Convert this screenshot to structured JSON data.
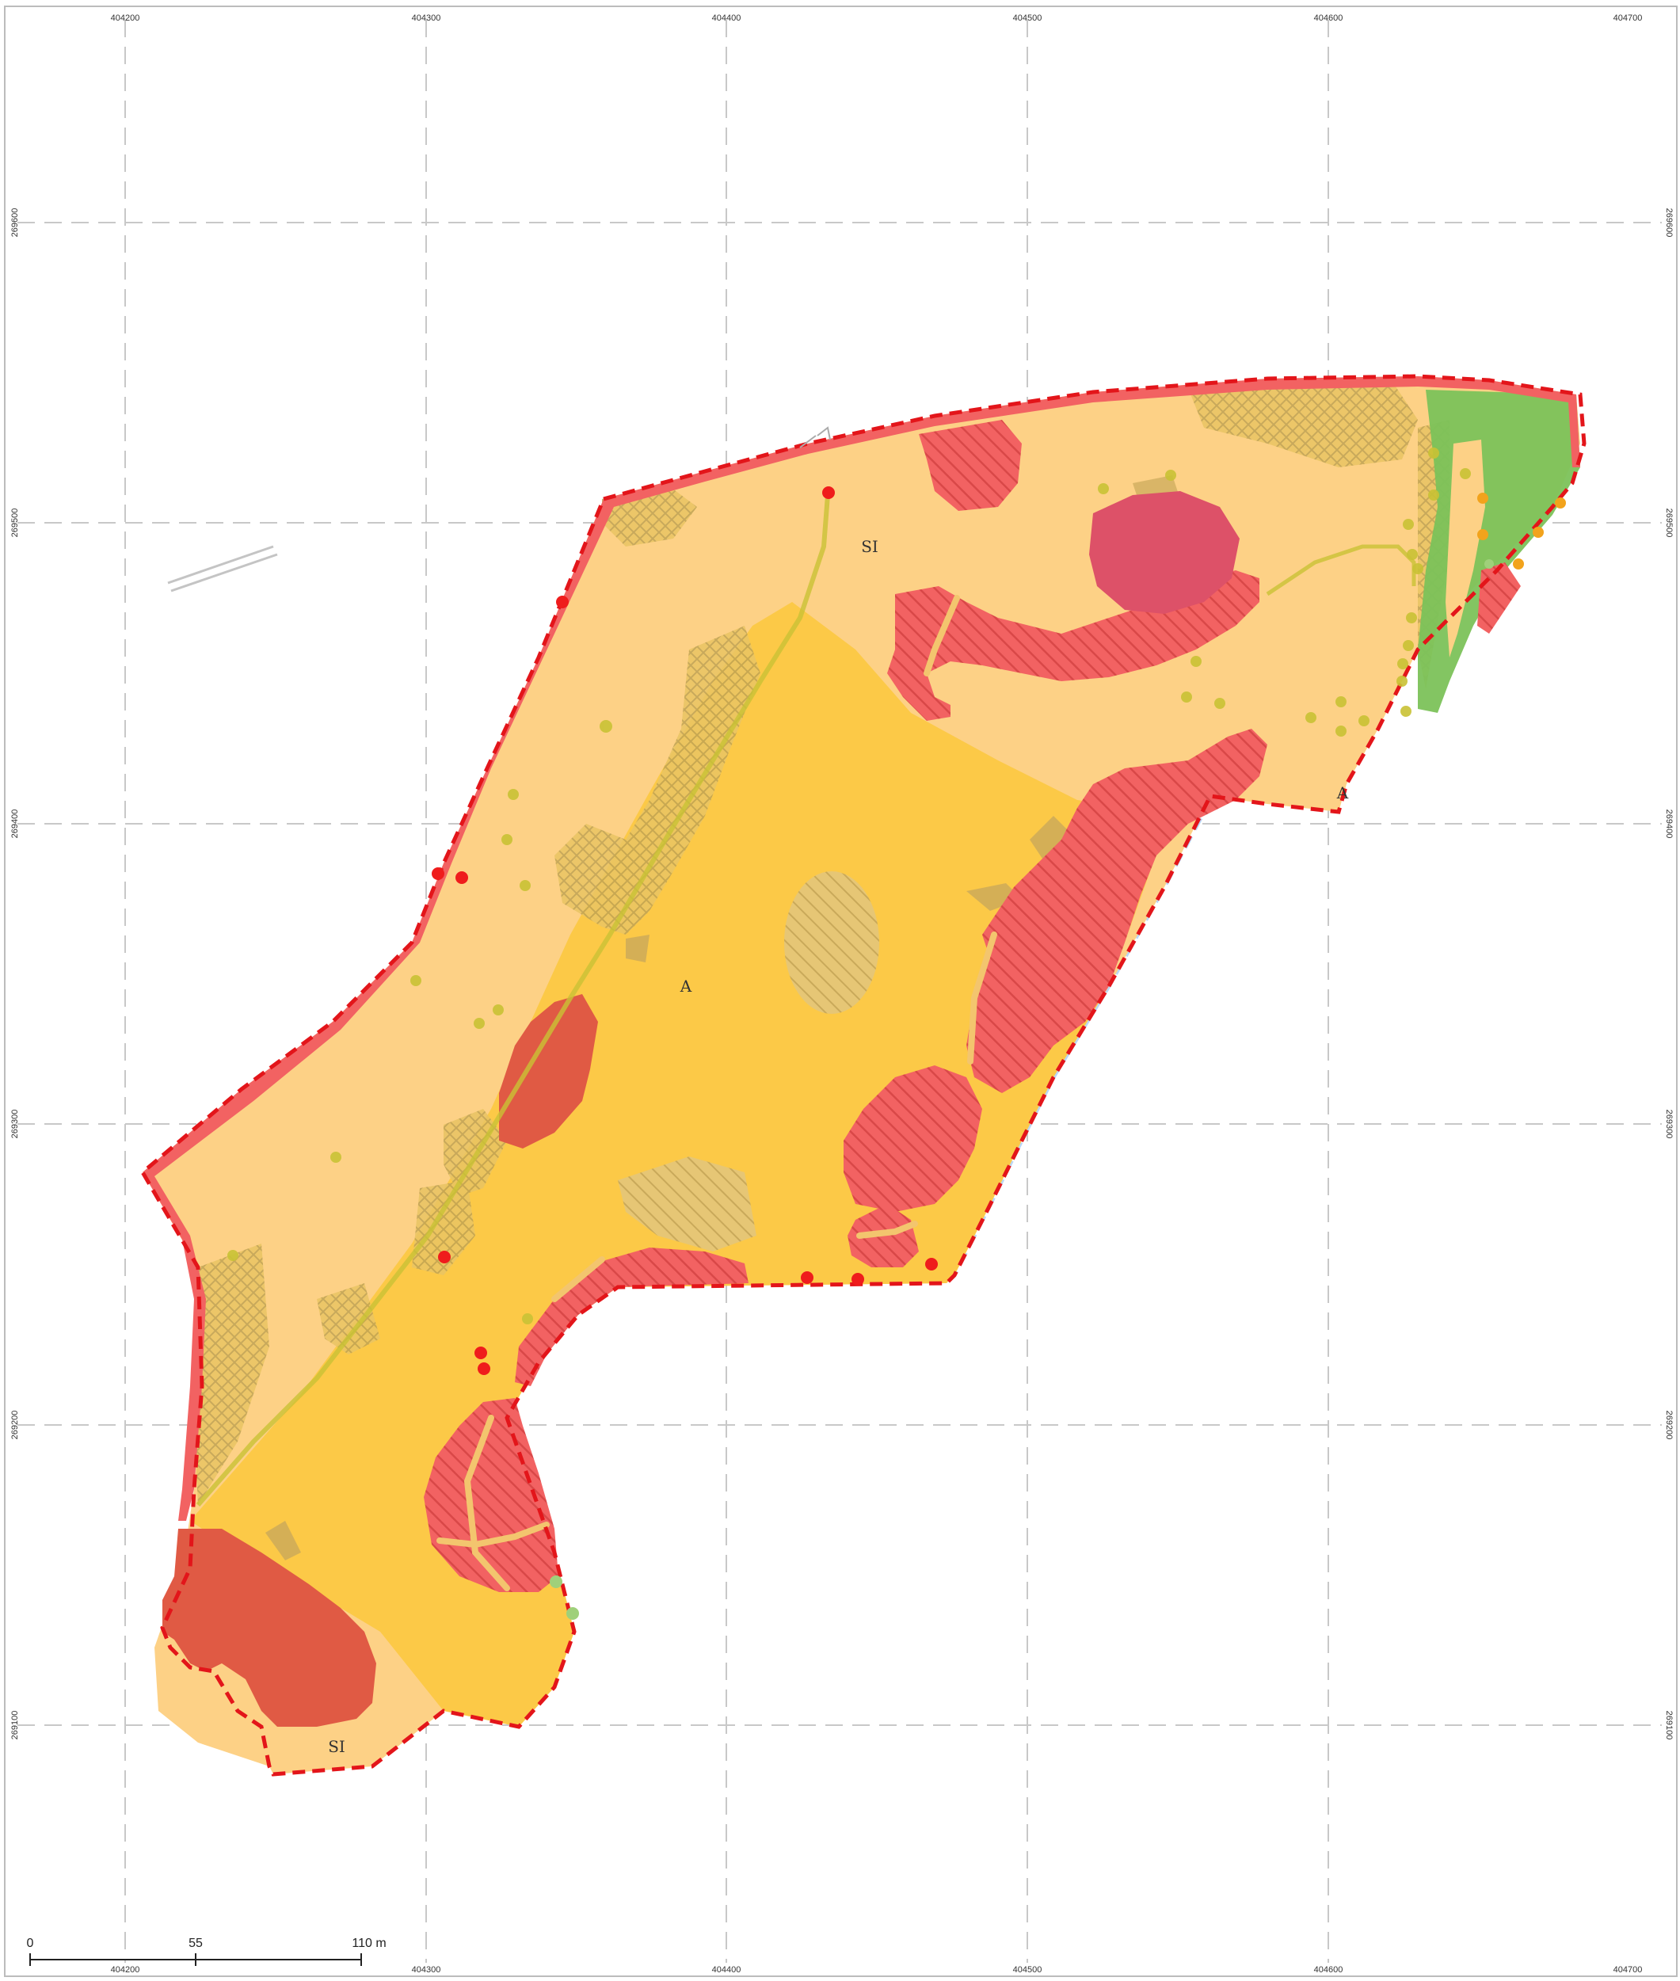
{
  "map": {
    "grid": {
      "eastings": [
        "404200",
        "404300",
        "404400",
        "404500",
        "404600",
        "404700"
      ],
      "northings": [
        "269500",
        "269400",
        "269300",
        "269200",
        "269100"
      ],
      "northing_top_label": "269600"
    },
    "zone_labels": {
      "si_north": "SI",
      "a_center": "A",
      "a_east": "A",
      "si_south": "SI"
    },
    "scale_bar": {
      "zero": "0",
      "mid": "55",
      "end": "110 m"
    },
    "colors": {
      "boundary": "#e3151a",
      "base_fill": "#fcc947",
      "light_fill": "#fdd186",
      "hatched_red": "#f26262",
      "solid_red": "#e05a44",
      "crimson": "#dd5168",
      "green": "#7cc25a",
      "tree_olive": "#c9c235",
      "tree_orange": "#f2a31c",
      "dot_red": "#ef1c1c",
      "dot_green": "#9fd07a",
      "drain_blue": "#b9d6f6"
    }
  }
}
